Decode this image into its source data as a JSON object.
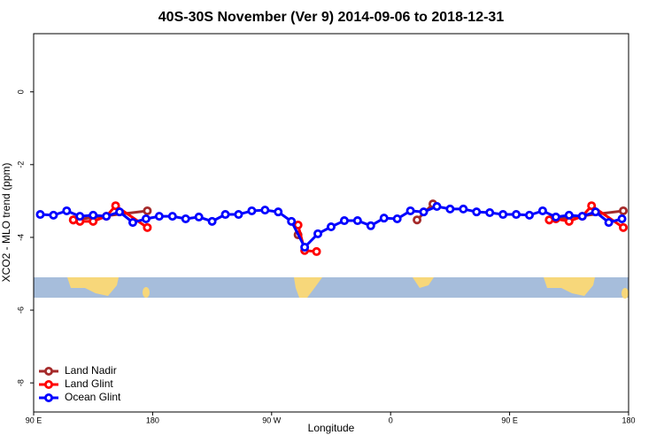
{
  "chart_data": {
    "type": "line",
    "title": "40S-30S November (Ver 9)   2014-09-06 to 2018-12-31",
    "x_label": "Longitude",
    "y_label": "XCO2 - MLO trend (ppm)",
    "xlim": [
      90,
      540
    ],
    "xticks": [
      {
        "value": 90,
        "label": "90 E"
      },
      180,
      {
        "value": 270,
        "label": "90 W"
      },
      {
        "value": 360,
        "label": "0"
      },
      {
        "value": 450,
        "label": "90 E"
      },
      {
        "value": 540,
        "label": "180"
      }
    ],
    "ylim": [
      -8.8,
      1.6
    ],
    "yticks": [
      0,
      -2,
      -4,
      -6,
      -8
    ],
    "legend": "bottom-left",
    "series": [
      {
        "name": "Land Nadir",
        "color": "#a52a2a",
        "x": [
          120,
          176,
          null,
          290,
          null,
          380,
          392,
          null,
          480,
          536
        ],
        "values": [
          -3.52,
          -3.27,
          null,
          -3.93,
          null,
          -3.52,
          -3.08,
          null,
          -3.52,
          -3.27
        ]
      },
      {
        "name": "Land Glint",
        "color": "#ff0000",
        "x": [
          120,
          125,
          135,
          145,
          152,
          176,
          null,
          290,
          295,
          304,
          null,
          480,
          485,
          495,
          505,
          512,
          536
        ],
        "values": [
          -3.52,
          -3.56,
          -3.56,
          -3.42,
          -3.13,
          -3.73,
          null,
          -3.66,
          -4.36,
          -4.39,
          null,
          -3.52,
          -3.49,
          -3.56,
          -3.42,
          -3.13,
          -3.73
        ]
      },
      {
        "name": "Ocean Glint",
        "color": "#0000ff",
        "x": [
          95,
          105,
          115,
          125,
          135,
          145,
          155,
          165,
          175,
          185,
          195,
          205,
          215,
          225,
          235,
          245,
          255,
          265,
          275,
          285,
          295,
          305,
          315,
          325,
          335,
          345,
          355,
          365,
          375,
          385,
          395,
          405,
          415,
          425,
          435,
          445,
          455,
          465,
          475,
          485,
          495,
          505,
          515,
          525,
          535
        ],
        "values": [
          -3.37,
          -3.39,
          -3.27,
          -3.42,
          -3.39,
          -3.42,
          -3.3,
          -3.59,
          -3.49,
          -3.42,
          -3.42,
          -3.49,
          -3.44,
          -3.56,
          -3.37,
          -3.37,
          -3.27,
          -3.25,
          -3.3,
          -3.56,
          -4.27,
          -3.9,
          -3.71,
          -3.54,
          -3.54,
          -3.68,
          -3.47,
          -3.49,
          -3.27,
          -3.3,
          -3.15,
          -3.22,
          -3.22,
          -3.3,
          -3.32,
          -3.37,
          -3.37,
          -3.39,
          -3.27,
          -3.44,
          -3.39,
          -3.42,
          -3.3,
          -3.59,
          -3.49
        ]
      }
    ]
  }
}
